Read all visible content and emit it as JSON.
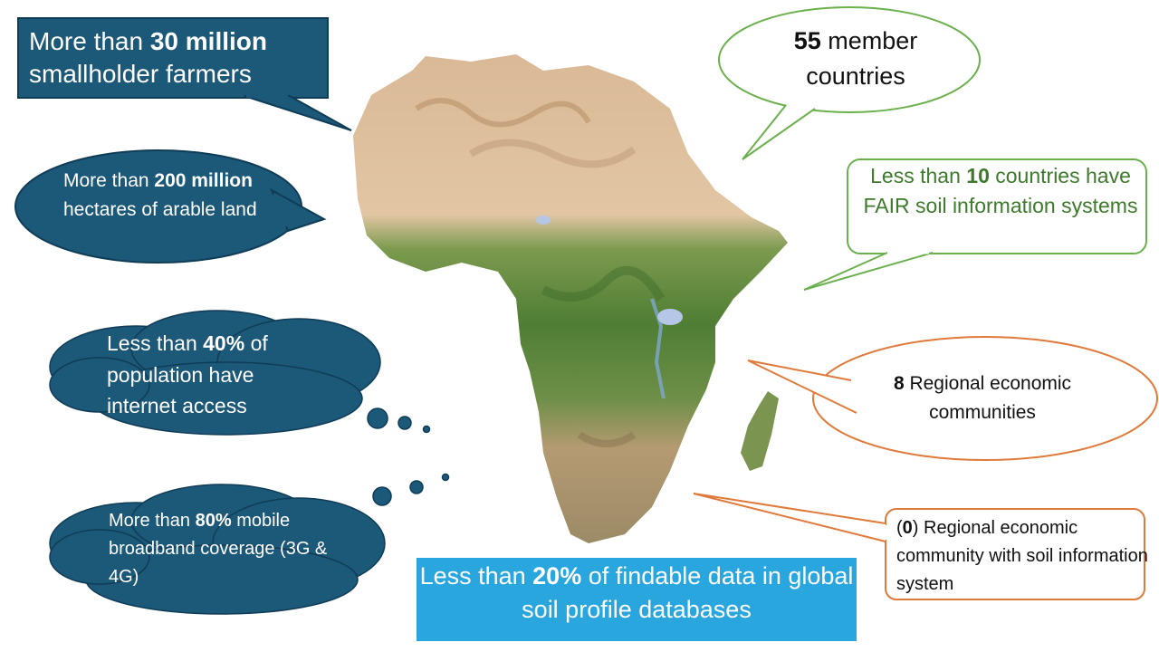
{
  "callouts": {
    "farmers": {
      "pre": "More than ",
      "bold": "30 million",
      "post": " smallholder farmers"
    },
    "arable": {
      "pre": "More than ",
      "bold": "200 million",
      "post": " hectares of arable land"
    },
    "internet": {
      "pre": "Less than ",
      "bold": "40%",
      "post": " of population have internet access"
    },
    "mobile": {
      "pre": "More than ",
      "bold": "80%",
      "post": " mobile broadband coverage (3G & 4G)"
    },
    "members": {
      "pre": "",
      "bold": "55",
      "post": " member countries"
    },
    "fair": {
      "pre": "Less than ",
      "bold": "10",
      "post": " countries have FAIR soil information systems"
    },
    "rec": {
      "pre": "",
      "bold": "8",
      "post": " Regional economic communities"
    },
    "recsoil": {
      "pre": "(",
      "bold": "0",
      "post": ") Regional economic community with soil information system"
    },
    "findable": {
      "pre": "Less than ",
      "bold": "20%",
      "post": " of findable data in global soil profile databases"
    }
  },
  "colors": {
    "navy": "#1c5878",
    "navy_border": "#0f3c57",
    "green_outline": "#6ab04c",
    "orange_outline": "#e07a3a",
    "sky_box": "#2aa6df",
    "desert": "#d8b48f",
    "forest": "#5a8a3a"
  },
  "map": {
    "subject": "Africa relief map"
  }
}
